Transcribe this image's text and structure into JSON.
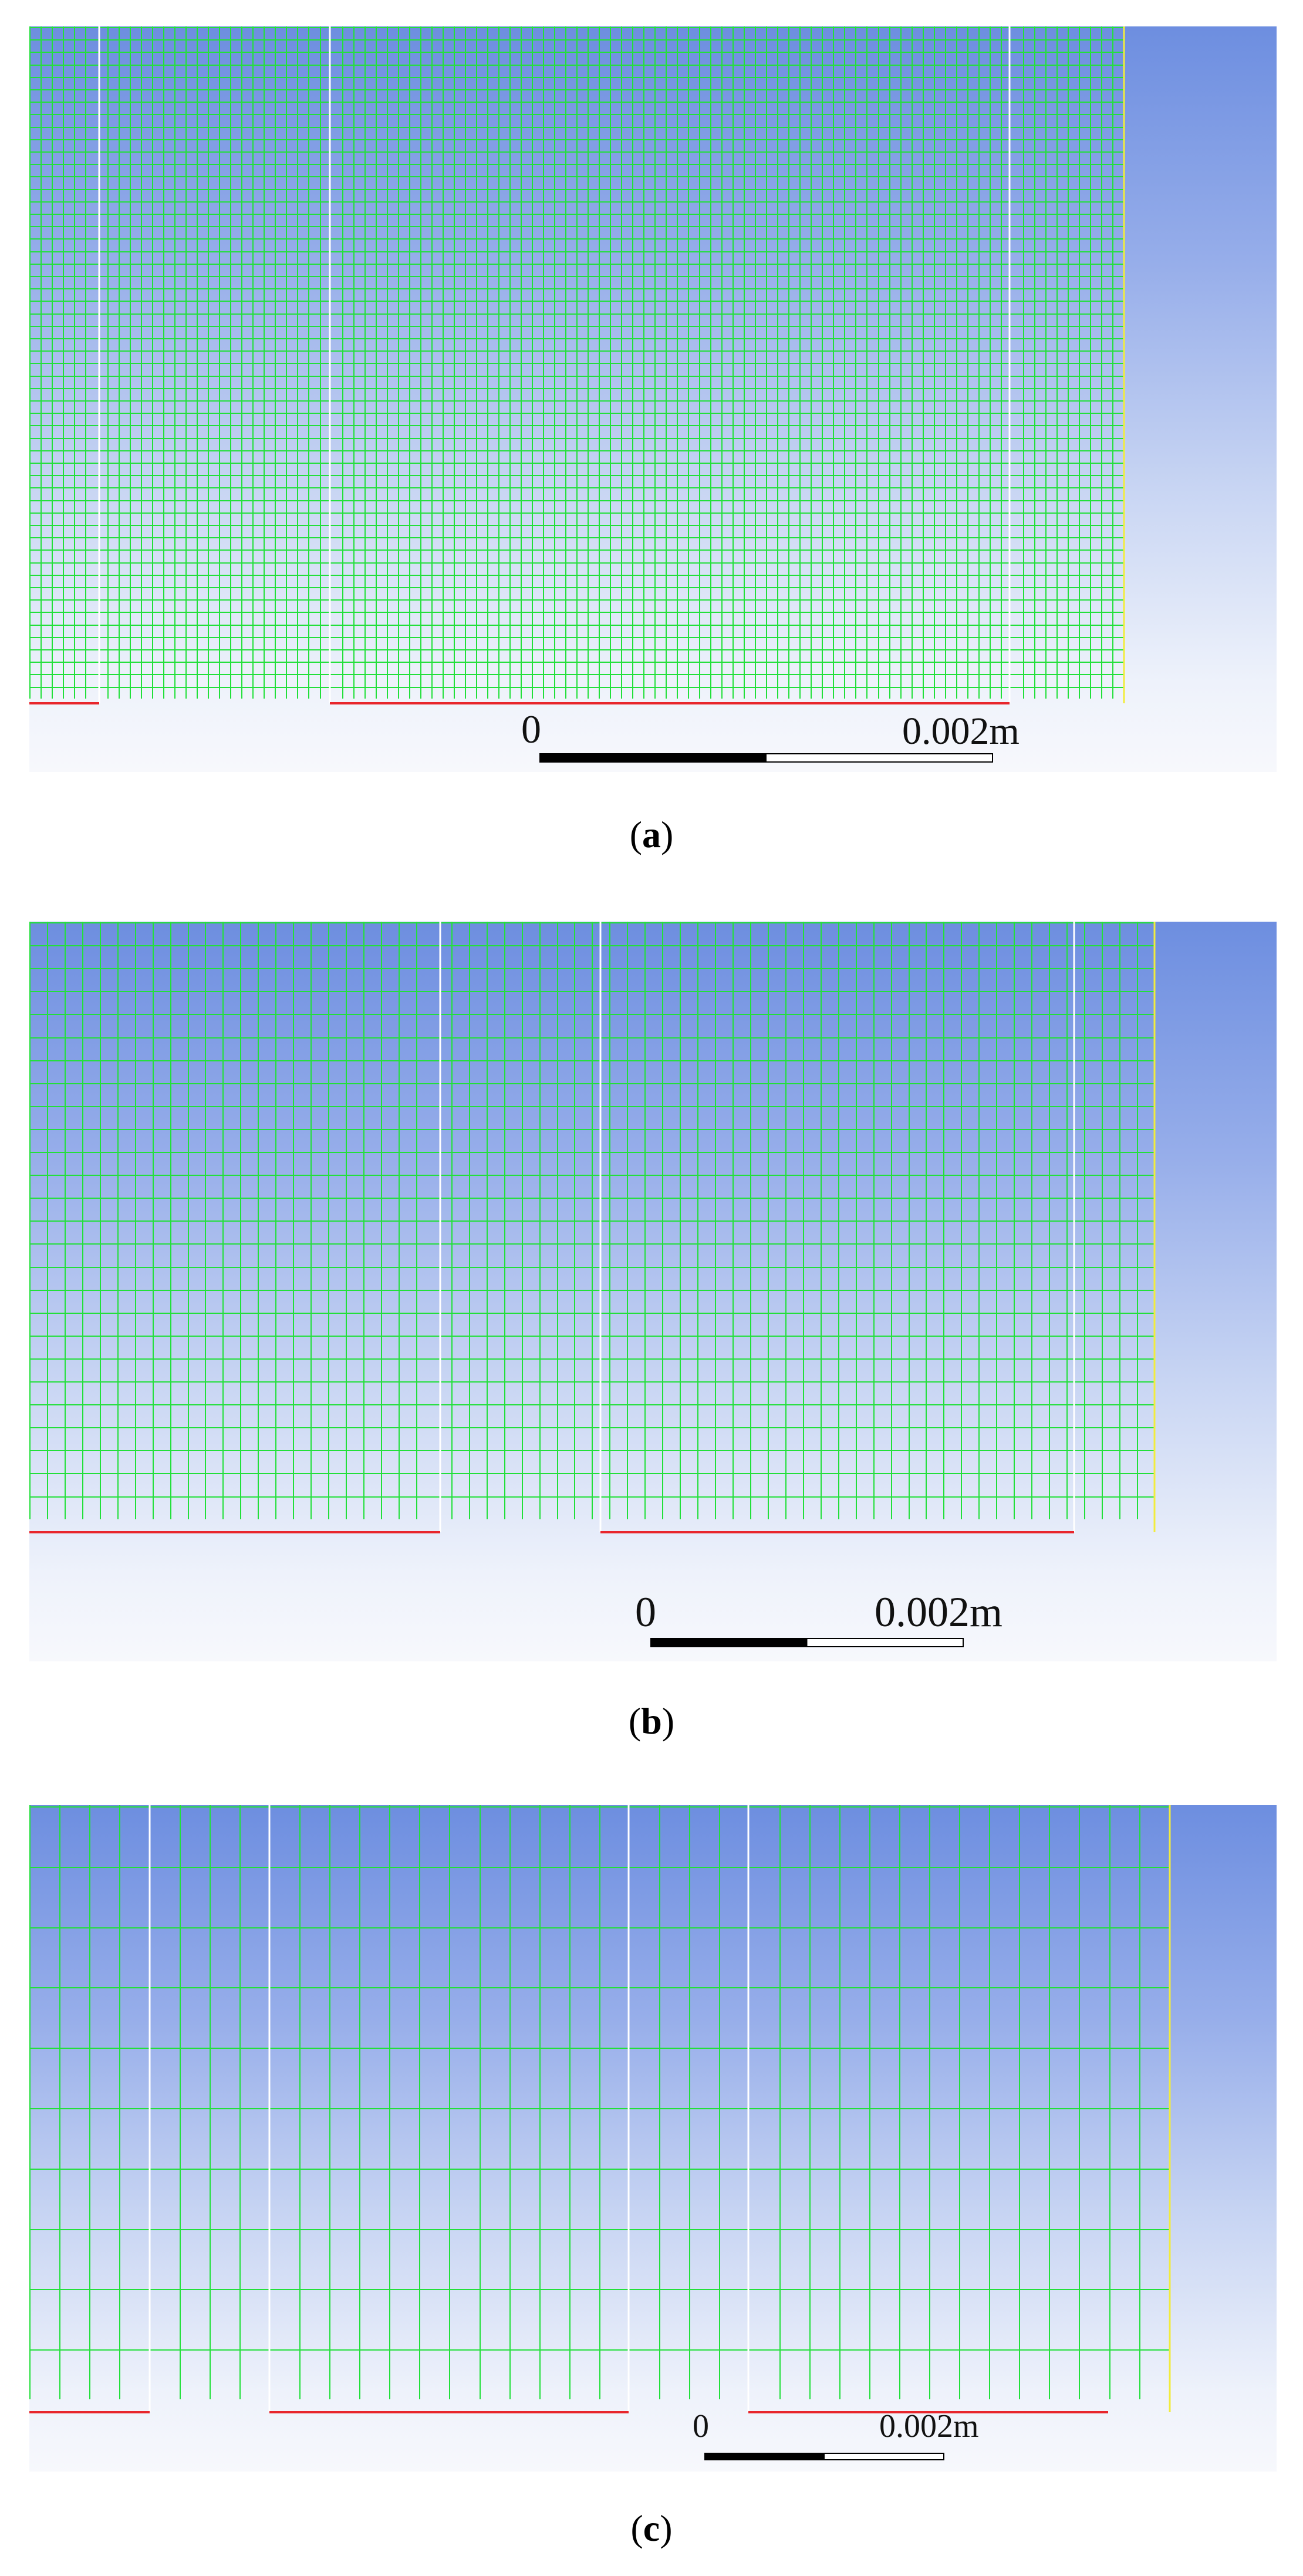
{
  "panels": [
    {
      "id": "a",
      "caption_prefix": "(",
      "caption_letter": "a",
      "caption_suffix": ")",
      "scale_zero": "0",
      "scale_length": "0.002m"
    },
    {
      "id": "b",
      "caption_prefix": "(",
      "caption_letter": "b",
      "caption_suffix": ")",
      "scale_zero": "0",
      "scale_length": "0.002m"
    },
    {
      "id": "c",
      "caption_prefix": "(",
      "caption_letter": "c",
      "caption_suffix": ")",
      "scale_zero": "0",
      "scale_length": "0.002m"
    }
  ],
  "colors": {
    "mesh_line": "#22e03a",
    "interface_line": "#ffffff",
    "outlet_line": "#f2ec3c",
    "wall_line": "#e8262c",
    "scale_bar": "#000000",
    "background_top": "#6d8ee0",
    "background_bottom": "#f7f8fc"
  }
}
